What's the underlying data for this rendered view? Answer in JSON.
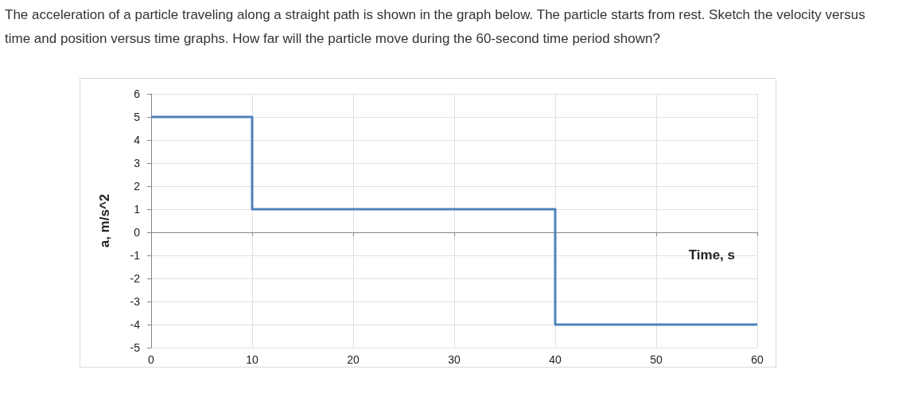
{
  "chart_data": {
    "type": "step",
    "title": "The acceleration of a particle traveling along a straight path is shown in the graph below. The particle starts from rest. Sketch the velocity versus time and position versus time graphs. How far will the particle move during the 60-second time period shown?",
    "xlabel": "Time, s",
    "ylabel": "a, m/s^2",
    "x": [
      0,
      10,
      40,
      60
    ],
    "series": [
      {
        "color": "#4f81bd",
        "values": [
          5,
          1,
          -4,
          -4
        ]
      }
    ],
    "xlim": [
      0,
      60
    ],
    "xticks": [
      0,
      10,
      20,
      30,
      40,
      50,
      60
    ],
    "ylim": [
      -5,
      6
    ],
    "yticks": [
      -5,
      -4,
      -3,
      -2,
      -1,
      0,
      1,
      2,
      3,
      4,
      5,
      6
    ],
    "grid": true,
    "marker": "none",
    "line_style": "solid"
  }
}
